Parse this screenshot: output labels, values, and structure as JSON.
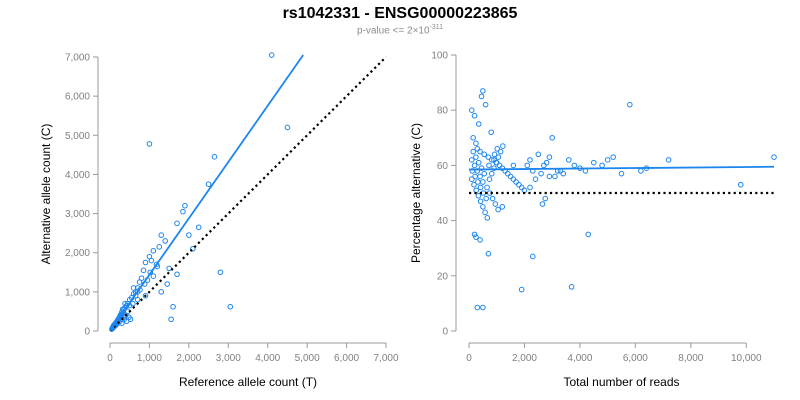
{
  "header": {
    "title": "rs1042331 - ENSG00000223865",
    "pvalue_prefix": "p-value <= 2",
    "pvalue_times": "×",
    "pvalue_base": "10",
    "pvalue_exp": "-311"
  },
  "colors": {
    "points": "#1c86ee",
    "fit": "#1c86ee",
    "reference": "#000000"
  },
  "chart_data": [
    {
      "type": "scatter",
      "name": "left",
      "title": "",
      "xlabel": "Reference allele count (T)",
      "ylabel": "Alternative allele count (C)",
      "xlim": [
        0,
        7000
      ],
      "ylim": [
        0,
        7000
      ],
      "xticks": [
        0,
        1000,
        2000,
        3000,
        4000,
        5000,
        6000,
        7000
      ],
      "yticks": [
        0,
        1000,
        2000,
        3000,
        4000,
        5000,
        6000,
        7000
      ],
      "xtick_labels": [
        "0",
        "1,000",
        "2,000",
        "3,000",
        "4,000",
        "5,000",
        "6,000",
        "7,000"
      ],
      "ytick_labels": [
        "0",
        "1,000",
        "2,000",
        "3,000",
        "4,000",
        "5,000",
        "6,000",
        "7,000"
      ],
      "fit_line": {
        "x": [
          0,
          4900
        ],
        "y": [
          0,
          7050
        ]
      },
      "reference_line": {
        "x": [
          0,
          7000
        ],
        "y": [
          0,
          7000
        ]
      },
      "points": {
        "x": [
          4100,
          4500,
          1000,
          2650,
          2800,
          3050,
          1600,
          1550,
          2500,
          1900,
          1850,
          2250,
          2000,
          1700,
          1400,
          1300,
          1250,
          1100,
          1000,
          900,
          1050,
          1500,
          1450,
          1200,
          800,
          850,
          700,
          750,
          650,
          600,
          550,
          500,
          450,
          420,
          380,
          350,
          300,
          280,
          260,
          240,
          220,
          200,
          180,
          160,
          140,
          120,
          100,
          90,
          80,
          70,
          60,
          50,
          600,
          650,
          700,
          450,
          400,
          350,
          300,
          250,
          200,
          150,
          1300,
          1100,
          950,
          500,
          380,
          330,
          520,
          480,
          420,
          360,
          300,
          700,
          900,
          1700,
          2100,
          200,
          170,
          130,
          110,
          95,
          260,
          320,
          580,
          760,
          880,
          1020,
          1180
        ],
        "y": [
          7050,
          5200,
          4780,
          4450,
          1500,
          620,
          620,
          300,
          3750,
          3200,
          3050,
          2650,
          2450,
          2750,
          2300,
          2450,
          2150,
          2050,
          1900,
          1750,
          1800,
          1600,
          1200,
          1650,
          1350,
          1550,
          1100,
          1250,
          1000,
          950,
          850,
          800,
          700,
          650,
          600,
          550,
          480,
          420,
          380,
          350,
          320,
          280,
          250,
          220,
          200,
          170,
          150,
          130,
          110,
          90,
          70,
          50,
          1100,
          900,
          1000,
          500,
          400,
          350,
          300,
          250,
          200,
          150,
          1000,
          1400,
          1300,
          650,
          700,
          450,
          300,
          350,
          250,
          300,
          200,
          800,
          900,
          1450,
          2100,
          250,
          200,
          150,
          120,
          100,
          400,
          550,
          700,
          1050,
          1200,
          1500,
          1700
        ]
      }
    },
    {
      "type": "scatter",
      "name": "right",
      "title": "",
      "xlabel": "Total number of reads",
      "ylabel": "Percentage alternative (C)",
      "xlim": [
        0,
        11000
      ],
      "ylim": [
        0,
        100
      ],
      "xticks": [
        0,
        2000,
        4000,
        6000,
        8000,
        10000
      ],
      "yticks": [
        0,
        20,
        40,
        60,
        80,
        100
      ],
      "xtick_labels": [
        "0",
        "2,000",
        "4,000",
        "6,000",
        "8,000",
        "10,000"
      ],
      "ytick_labels": [
        "0",
        "20",
        "40",
        "60",
        "80",
        "100"
      ],
      "fit_line": {
        "x": [
          0,
          11000
        ],
        "y": [
          58.5,
          59.5
        ]
      },
      "reference_line": {
        "x": [
          0,
          11000
        ],
        "y": [
          50,
          50
        ]
      },
      "points": {
        "x": [
          100,
          200,
          350,
          450,
          500,
          600,
          800,
          150,
          250,
          300,
          400,
          550,
          700,
          900,
          1000,
          1100,
          1200,
          1300,
          1400,
          1500,
          1600,
          1700,
          1800,
          1900,
          2000,
          2100,
          2200,
          2300,
          2400,
          2500,
          2600,
          2700,
          2800,
          2900,
          3000,
          3200,
          3400,
          3600,
          3800,
          4000,
          4200,
          4500,
          5000,
          5500,
          5800,
          6200,
          6400,
          7200,
          9800,
          11000,
          100,
          200,
          300,
          400,
          500,
          650,
          750,
          850,
          950,
          1050,
          150,
          250,
          350,
          450,
          550,
          100,
          180,
          260,
          340,
          420,
          500,
          580,
          660,
          740,
          820,
          900,
          980,
          1060,
          1140,
          1220,
          120,
          220,
          320,
          420,
          520,
          620,
          720,
          820,
          920,
          1020,
          200,
          250,
          400,
          300,
          500,
          700,
          1200,
          2300,
          3700,
          4300,
          1900,
          2200,
          3100,
          1600,
          2900,
          3300,
          2650,
          2750,
          4800,
          5200
        ],
        "y": [
          80,
          78,
          75,
          85,
          87,
          82,
          72,
          70,
          68,
          66,
          65,
          64,
          63,
          62,
          61,
          60,
          59,
          58,
          57,
          56,
          55,
          54,
          53,
          52,
          51,
          60,
          62,
          58,
          55,
          64,
          57,
          60,
          61,
          56,
          70,
          58,
          57,
          62,
          60,
          59,
          58,
          61,
          62,
          57,
          82,
          58,
          59,
          62,
          53,
          63,
          62,
          60,
          58,
          56,
          54,
          52,
          50,
          48,
          46,
          44,
          65,
          63,
          61,
          59,
          57,
          55,
          53,
          51,
          49,
          47,
          45,
          43,
          41,
          55,
          57,
          59,
          61,
          63,
          65,
          67,
          58,
          56,
          54,
          52,
          50,
          48,
          60,
          62,
          64,
          66,
          35,
          34,
          33,
          8.5,
          8.5,
          28,
          45,
          27,
          16,
          35,
          15,
          52,
          56,
          60,
          63,
          58,
          46,
          48,
          60,
          63
        ]
      }
    }
  ]
}
